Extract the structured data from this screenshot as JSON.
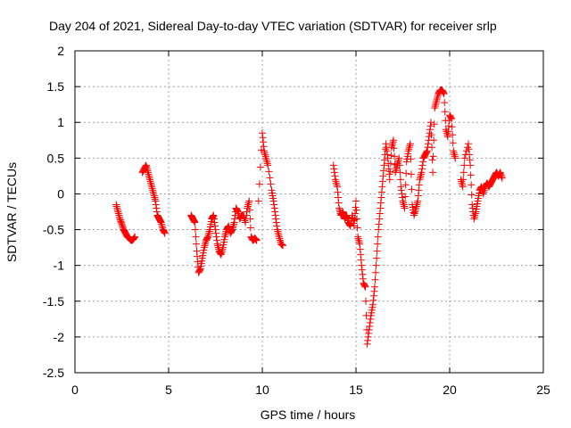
{
  "chart_data": {
    "type": "scatter",
    "title": "Day 204 of 2021, Sidereal Day-to-day VTEC variation (SDTVAR) for receiver srlp",
    "xlabel": "GPS time / hours",
    "ylabel": "SDTVAR / TECUs",
    "xlim": [
      0,
      25
    ],
    "ylim": [
      -2.5,
      2
    ],
    "xticks": [
      0,
      5,
      10,
      15,
      20,
      25
    ],
    "xtick_labels": [
      "0",
      "5",
      "10",
      "15",
      "20",
      "25"
    ],
    "yticks": [
      -2.5,
      -2,
      -1.5,
      -1,
      -0.5,
      0,
      0.5,
      1,
      1.5,
      2
    ],
    "ytick_labels": [
      "-2.5",
      "-2",
      "-1.5",
      "-1",
      "-0.5",
      "0",
      "0.5",
      "1",
      "1.5",
      "2"
    ],
    "grid": true,
    "marker": "plus",
    "color": "#ff0000",
    "series": [
      {
        "name": "SDTVAR",
        "segments": [
          [
            [
              2.2,
              -0.15
            ],
            [
              2.3,
              -0.25
            ],
            [
              2.4,
              -0.35
            ],
            [
              2.5,
              -0.42
            ],
            [
              2.6,
              -0.5
            ],
            [
              2.7,
              -0.55
            ],
            [
              2.8,
              -0.6
            ],
            [
              2.9,
              -0.62
            ],
            [
              3.0,
              -0.65
            ],
            [
              3.1,
              -0.64
            ],
            [
              3.2,
              -0.6
            ]
          ],
          [
            [
              3.6,
              0.3
            ],
            [
              3.7,
              0.35
            ],
            [
              3.8,
              0.4
            ],
            [
              3.9,
              0.3
            ],
            [
              4.0,
              0.2
            ],
            [
              4.1,
              0.1
            ],
            [
              4.2,
              0.0
            ],
            [
              4.3,
              -0.1
            ],
            [
              4.4,
              -0.3
            ],
            [
              4.5,
              -0.35
            ],
            [
              4.6,
              -0.4
            ],
            [
              4.7,
              -0.5
            ],
            [
              4.8,
              -0.55
            ]
          ],
          [
            [
              6.2,
              -0.3
            ],
            [
              6.3,
              -0.35
            ],
            [
              6.4,
              -0.4
            ],
            [
              6.5,
              -0.8
            ],
            [
              6.6,
              -1.1
            ],
            [
              6.7,
              -1.05
            ],
            [
              6.8,
              -0.9
            ],
            [
              6.9,
              -0.75
            ],
            [
              7.0,
              -0.65
            ],
            [
              7.1,
              -0.6
            ],
            [
              7.2,
              -0.5
            ],
            [
              7.3,
              -0.35
            ],
            [
              7.4,
              -0.3
            ],
            [
              7.5,
              -0.5
            ],
            [
              7.6,
              -0.7
            ],
            [
              7.7,
              -0.8
            ],
            [
              7.8,
              -0.85
            ],
            [
              7.9,
              -0.75
            ],
            [
              8.0,
              -0.6
            ],
            [
              8.1,
              -0.5
            ],
            [
              8.2,
              -0.45
            ],
            [
              8.3,
              -0.55
            ],
            [
              8.4,
              -0.5
            ],
            [
              8.5,
              -0.4
            ],
            [
              8.6,
              -0.2
            ],
            [
              8.7,
              -0.25
            ],
            [
              8.8,
              -0.35
            ],
            [
              8.9,
              -0.3
            ],
            [
              9.0,
              -0.3
            ],
            [
              9.1,
              -0.4
            ],
            [
              9.2,
              -0.2
            ],
            [
              9.3,
              -0.1
            ],
            [
              9.4,
              -0.6
            ],
            [
              9.5,
              -0.65
            ],
            [
              9.6,
              -0.62
            ],
            [
              9.7,
              -0.65
            ]
          ],
          [
            [
              9.8,
              -0.1
            ],
            [
              10.0,
              0.85
            ],
            [
              10.1,
              0.6
            ],
            [
              10.2,
              0.5
            ],
            [
              10.3,
              0.4
            ],
            [
              10.5,
              0.05
            ],
            [
              10.6,
              -0.1
            ],
            [
              10.7,
              -0.3
            ],
            [
              10.8,
              -0.5
            ],
            [
              10.9,
              -0.6
            ],
            [
              11.0,
              -0.7
            ],
            [
              11.1,
              -0.72
            ]
          ],
          [
            [
              13.8,
              0.4
            ],
            [
              13.9,
              0.2
            ],
            [
              14.0,
              0.1
            ],
            [
              14.1,
              -0.2
            ],
            [
              14.2,
              -0.3
            ],
            [
              14.3,
              -0.25
            ],
            [
              14.4,
              -0.35
            ],
            [
              14.5,
              -0.3
            ],
            [
              14.6,
              -0.4
            ],
            [
              14.7,
              -0.45
            ],
            [
              14.8,
              -0.3
            ],
            [
              14.9,
              -0.45
            ],
            [
              15.0,
              -0.1
            ],
            [
              15.1,
              -0.6
            ],
            [
              15.2,
              -0.7
            ],
            [
              15.3,
              -1.0
            ],
            [
              15.4,
              -1.25
            ],
            [
              15.5,
              -1.3
            ],
            [
              15.6,
              -2.1
            ],
            [
              15.7,
              -1.9
            ],
            [
              15.8,
              -1.7
            ],
            [
              15.9,
              -1.55
            ],
            [
              16.0,
              -1.3
            ],
            [
              16.1,
              -0.9
            ],
            [
              16.2,
              -0.5
            ],
            [
              16.3,
              -0.2
            ],
            [
              16.4,
              0.1
            ],
            [
              16.5,
              0.4
            ],
            [
              16.6,
              0.7
            ],
            [
              16.7,
              0.5
            ],
            [
              16.8,
              0.2
            ],
            [
              16.9,
              0.65
            ],
            [
              17.0,
              0.75
            ],
            [
              17.1,
              0.3
            ],
            [
              17.2,
              0.4
            ],
            [
              17.3,
              0.5
            ],
            [
              17.4,
              0.1
            ],
            [
              17.5,
              -0.1
            ],
            [
              17.6,
              -0.2
            ],
            [
              17.7,
              0.45
            ],
            [
              17.8,
              0.6
            ],
            [
              17.9,
              0.7
            ],
            [
              18.0,
              -0.15
            ],
            [
              18.1,
              -0.3
            ],
            [
              18.2,
              -0.2
            ],
            [
              18.3,
              -0.1
            ],
            [
              18.4,
              0.2
            ],
            [
              18.5,
              0.3
            ],
            [
              18.6,
              0.5
            ],
            [
              18.7,
              0.55
            ],
            [
              18.8,
              0.6
            ],
            [
              18.9,
              0.8
            ],
            [
              19.0,
              1.0
            ],
            [
              19.1,
              0.3
            ],
            [
              19.2,
              1.2
            ],
            [
              19.3,
              1.3
            ],
            [
              19.4,
              1.4
            ],
            [
              19.5,
              1.45
            ],
            [
              19.6,
              1.45
            ],
            [
              19.7,
              1.4
            ],
            [
              19.8,
              0.9
            ],
            [
              19.9,
              0.8
            ],
            [
              20.0,
              1.1
            ],
            [
              20.1,
              1.05
            ],
            [
              20.2,
              0.6
            ],
            [
              20.3,
              0.5
            ]
          ],
          [
            [
              20.6,
              0.2
            ],
            [
              20.7,
              0.1
            ],
            [
              20.8,
              0.5
            ],
            [
              21.0,
              0.7
            ],
            [
              21.1,
              0.4
            ],
            [
              21.2,
              -0.15
            ],
            [
              21.3,
              -0.35
            ],
            [
              21.4,
              -0.25
            ],
            [
              21.5,
              -0.1
            ],
            [
              21.6,
              0.05
            ],
            [
              21.7,
              0.1
            ],
            [
              21.8,
              0.0
            ],
            [
              21.9,
              0.1
            ],
            [
              22.0,
              0.15
            ],
            [
              22.1,
              0.1
            ],
            [
              22.2,
              0.15
            ],
            [
              22.3,
              0.2
            ],
            [
              22.4,
              0.25
            ],
            [
              22.5,
              0.3
            ],
            [
              22.6,
              0.25
            ],
            [
              22.7,
              0.3
            ],
            [
              22.8,
              0.22
            ]
          ]
        ]
      }
    ]
  }
}
